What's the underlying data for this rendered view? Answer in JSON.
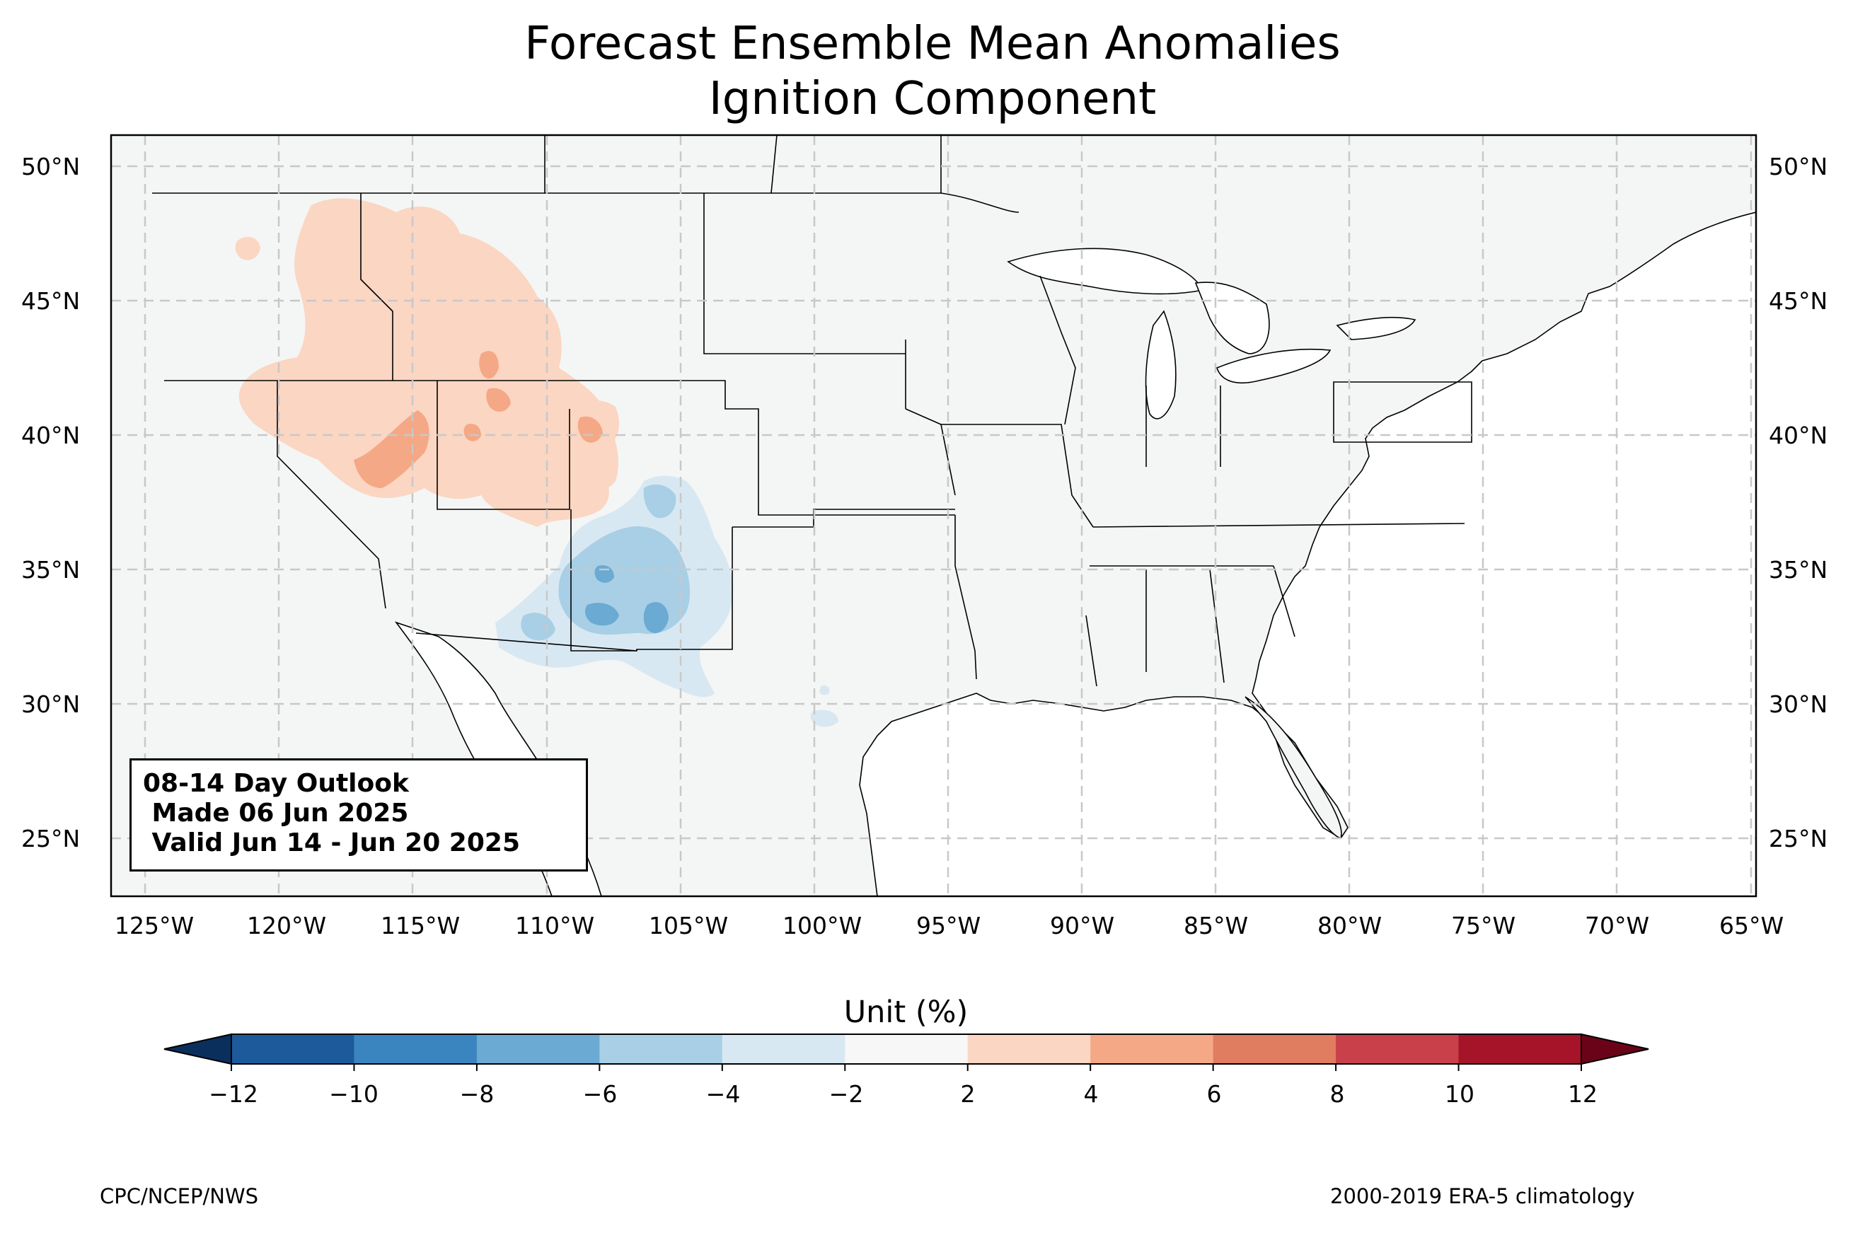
{
  "title": {
    "line1": "Forecast Ensemble Mean Anomalies",
    "line2": "Ignition Component"
  },
  "outlook_box": {
    "line1": "08-14 Day Outlook",
    "line2": " Made 06 Jun 2025",
    "line3": " Valid Jun 14 - Jun 20 2025"
  },
  "lat_labels": [
    "50°N",
    "45°N",
    "40°N",
    "35°N",
    "30°N",
    "25°N"
  ],
  "lon_labels": [
    "125°W",
    "120°W",
    "115°W",
    "110°W",
    "105°W",
    "100°W",
    "95°W",
    "90°W",
    "85°W",
    "80°W",
    "75°W",
    "70°W",
    "65°W"
  ],
  "colorbar": {
    "title": "Unit (%)",
    "tick_labels": [
      "−12",
      "−10",
      "−8",
      "−6",
      "−4",
      "−2",
      "2",
      "4",
      "6",
      "8",
      "10",
      "12"
    ],
    "levels": [
      -12,
      -10,
      -8,
      -6,
      -4,
      -2,
      2,
      4,
      6,
      8,
      10,
      12
    ],
    "colors": [
      "#1c5a9c",
      "#3a85c0",
      "#6aaad3",
      "#a8cfe5",
      "#d8e8f2",
      "#f7f7f7",
      "#fbd6c2",
      "#f4a886",
      "#e07c5f",
      "#c9404a",
      "#a51428"
    ],
    "under_color": "#0b2f5c",
    "over_color": "#6b0318"
  },
  "colors": {
    "land": "#f4f6f5",
    "warm_light": "#fbd6c2",
    "warm_mid": "#f4a886",
    "cool_light": "#d8e8f2",
    "cool_mid": "#a8cfe5",
    "cool_dark": "#6aaad3"
  },
  "footer": {
    "left": "CPC/NCEP/NWS",
    "right": "2000-2019 ERA-5 climatology"
  }
}
